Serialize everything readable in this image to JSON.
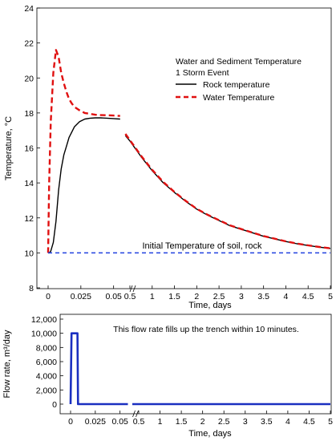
{
  "chart_data": [
    {
      "type": "line",
      "ylabel": "Temperature, °C",
      "xlabel": "Time, days",
      "ylim": [
        8,
        24
      ],
      "yticks": [
        8,
        10,
        12,
        14,
        16,
        18,
        20,
        22,
        24
      ],
      "x_axis_broken": true,
      "x_segments": [
        {
          "range": [
            0,
            0.06
          ],
          "ticks": [
            0,
            0.025,
            0.05
          ],
          "tick_labels": [
            "0",
            "0.025",
            "0.05"
          ]
        },
        {
          "range": [
            0,
            5
          ],
          "ticks": [
            0.5,
            1,
            1.5,
            2,
            2.5,
            3,
            3.5,
            4,
            4.5,
            5
          ],
          "tick_labels": [
            "0.5",
            "1",
            "1.5",
            "2",
            "2.5",
            "3",
            "3.5",
            "4",
            "4.5",
            "5"
          ]
        }
      ],
      "legend": {
        "title_line1": "Water and Sediment Temperature",
        "title_line2": "1 Storm Event",
        "placement": "top-right",
        "entries": [
          {
            "label": "Rock temperature",
            "color": "#000000",
            "style": "solid"
          },
          {
            "label": "Water Temperature",
            "color": "#e01010",
            "style": "dashed"
          }
        ]
      },
      "series": [
        {
          "name": "Rock temperature",
          "color": "#000000",
          "style": "solid",
          "segment1": {
            "x": [
              0,
              0.001,
              0.002,
              0.004,
              0.006,
              0.008,
              0.01,
              0.012,
              0.014,
              0.016,
              0.018,
              0.02,
              0.024,
              0.028,
              0.032,
              0.036,
              0.04,
              0.045,
              0.05,
              0.055
            ],
            "y": [
              10.0,
              10.0,
              10.1,
              10.6,
              11.8,
              13.6,
              14.8,
              15.6,
              16.1,
              16.6,
              16.9,
              17.2,
              17.5,
              17.65,
              17.7,
              17.72,
              17.72,
              17.7,
              17.68,
              17.65
            ]
          },
          "segment2": {
            "x": [
              0.4,
              0.5,
              0.75,
              1.0,
              1.25,
              1.5,
              1.75,
              2.0,
              2.25,
              2.5,
              2.75,
              3.0,
              3.25,
              3.5,
              3.75,
              4.0,
              4.25,
              4.5,
              4.75,
              5.0
            ],
            "y": [
              16.7,
              16.4,
              15.5,
              14.7,
              14.0,
              13.45,
              12.95,
              12.5,
              12.15,
              11.85,
              11.55,
              11.35,
              11.15,
              10.95,
              10.8,
              10.65,
              10.52,
              10.42,
              10.33,
              10.25
            ]
          }
        },
        {
          "name": "Water Temperature",
          "color": "#e01010",
          "style": "dashed",
          "segment1": {
            "x": [
              0,
              0.0008,
              0.002,
              0.004,
              0.006,
              0.008,
              0.01,
              0.012,
              0.014,
              0.016,
              0.018,
              0.02,
              0.024,
              0.028,
              0.032,
              0.036,
              0.04,
              0.045,
              0.05,
              0.055
            ],
            "y": [
              10.0,
              14.0,
              17.5,
              20.3,
              21.6,
              21.2,
              20.3,
              19.7,
              19.2,
              18.8,
              18.55,
              18.35,
              18.15,
              18.0,
              17.95,
              17.9,
              17.88,
              17.87,
              17.85,
              17.83
            ]
          },
          "segment2": {
            "x": [
              0.4,
              0.5,
              0.75,
              1.0,
              1.25,
              1.5,
              1.75,
              2.0,
              2.25,
              2.5,
              2.75,
              3.0,
              3.25,
              3.5,
              3.75,
              4.0,
              4.25,
              4.5,
              4.75,
              5.0
            ],
            "y": [
              16.8,
              16.45,
              15.55,
              14.75,
              14.05,
              13.48,
              12.98,
              12.52,
              12.17,
              11.87,
              11.57,
              11.36,
              11.16,
              10.96,
              10.81,
              10.66,
              10.53,
              10.43,
              10.34,
              10.26
            ]
          }
        },
        {
          "name": "Initial Temperature of soil, rock",
          "color": "#2040e0",
          "style": "dashed",
          "constant_y": 10
        }
      ],
      "annotations": [
        {
          "text": "Initial Temperature of soil, rock"
        }
      ]
    },
    {
      "type": "line",
      "ylabel": "Flow rate, m³/day",
      "xlabel": "Time, days",
      "ylim": [
        0,
        12000
      ],
      "yticks": [
        0,
        2000,
        4000,
        6000,
        8000,
        10000,
        12000
      ],
      "ytick_labels": [
        "0",
        "2,000",
        "4,000",
        "6,000",
        "8,000",
        "10,000",
        "12,000"
      ],
      "x_axis_broken": true,
      "x_segments": [
        {
          "range": [
            0,
            0.06
          ],
          "ticks": [
            0,
            0.025,
            0.05
          ],
          "tick_labels": [
            "0",
            "0.025",
            "0.05"
          ]
        },
        {
          "range": [
            0,
            5
          ],
          "ticks": [
            0.5,
            1,
            1.5,
            2,
            2.5,
            3,
            3.5,
            4,
            4.5,
            5
          ],
          "tick_labels": [
            "0.5",
            "1",
            "1.5",
            "2",
            "2.5",
            "3",
            "3.5",
            "4",
            "4.5",
            "5"
          ]
        }
      ],
      "series": [
        {
          "color": "#1a2fc0",
          "style": "solid",
          "segment1": {
            "x": [
              0,
              0.001,
              0.007,
              0.0075,
              0.058
            ],
            "y": [
              0,
              10000,
              10000,
              0,
              0
            ]
          },
          "segment2": {
            "x": [
              0.35,
              5.0
            ],
            "y": [
              0,
              0
            ]
          }
        }
      ],
      "annotations": [
        {
          "text": "This flow rate fills up the trench within 10 minutes."
        }
      ]
    }
  ]
}
